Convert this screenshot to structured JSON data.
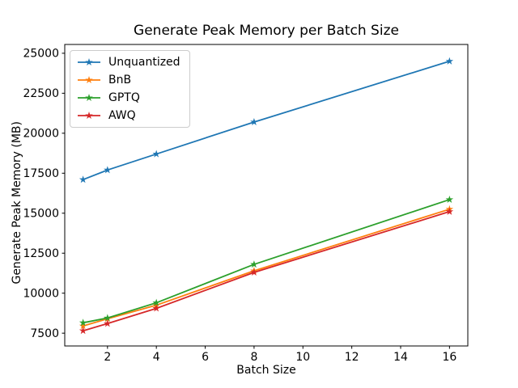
{
  "chart_data": {
    "type": "line",
    "title": "Generate Peak Memory per Batch Size",
    "xlabel": "Batch Size",
    "ylabel": "Generate Peak Memory (MB)",
    "x": [
      1,
      2,
      4,
      8,
      16
    ],
    "series": [
      {
        "name": "Unquantized",
        "color": "#1f77b4",
        "marker": "star",
        "values": [
          17100,
          17700,
          18700,
          20700,
          24500
        ]
      },
      {
        "name": "BnB",
        "color": "#ff7f0e",
        "marker": "star",
        "values": [
          7950,
          8400,
          9250,
          11400,
          15250
        ]
      },
      {
        "name": "GPTQ",
        "color": "#2ca02c",
        "marker": "star",
        "values": [
          8150,
          8450,
          9400,
          11800,
          15850
        ]
      },
      {
        "name": "AWQ",
        "color": "#d62728",
        "marker": "star",
        "values": [
          7650,
          8100,
          9050,
          11300,
          15100
        ]
      }
    ],
    "xticks": [
      2,
      4,
      6,
      8,
      10,
      12,
      14,
      16
    ],
    "yticks": [
      7500,
      10000,
      12500,
      15000,
      17500,
      20000,
      22500,
      25000
    ],
    "xlim": [
      0.25,
      16.75
    ],
    "ylim": [
      6700,
      25550
    ],
    "grid": false,
    "legend_position": "upper-left",
    "spine_color": "#000000",
    "background": "#ffffff"
  }
}
